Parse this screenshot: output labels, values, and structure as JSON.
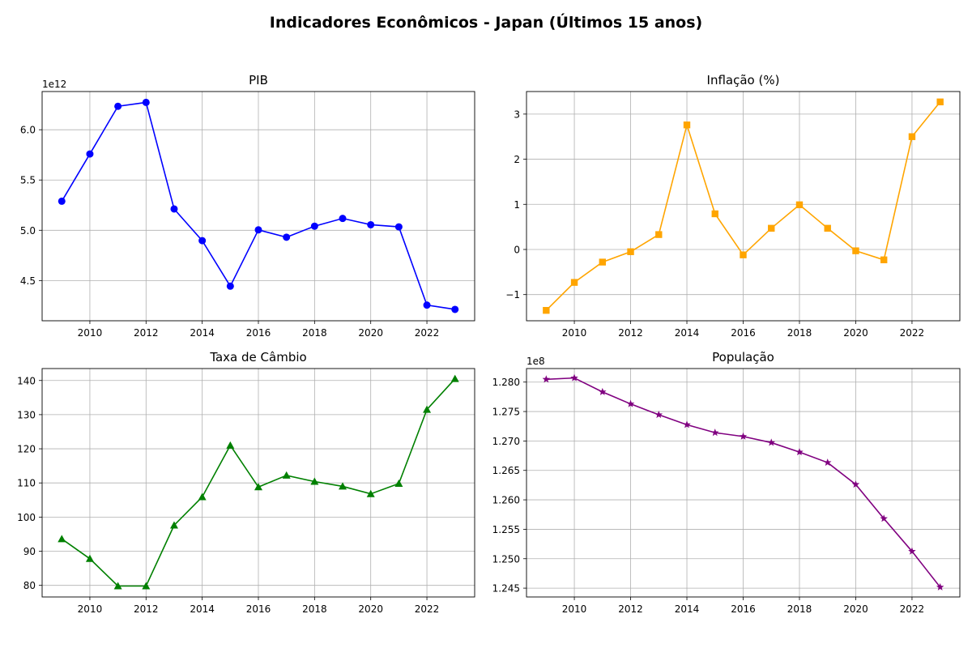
{
  "page": {
    "suptitle": "Indicadores Econômicos - Japan (Últimos 15 anos)"
  },
  "chart_data": [
    {
      "id": "pib",
      "type": "line",
      "title": "PIB",
      "offset_text": "1e12",
      "scale": 1000000000000,
      "x": [
        2009,
        2010,
        2011,
        2012,
        2013,
        2014,
        2015,
        2016,
        2017,
        2018,
        2019,
        2020,
        2021,
        2022,
        2023
      ],
      "values": [
        5289000000000,
        5759000000000,
        6233000000000,
        6272000000000,
        5212000000000,
        4897000000000,
        4444000000000,
        5004000000000,
        4931000000000,
        5041000000000,
        5118000000000,
        5055000000000,
        5034000000000,
        4256000000000,
        4213000000000
      ],
      "xticks": [
        2010,
        2012,
        2014,
        2016,
        2018,
        2020,
        2022
      ],
      "yticks": [
        4500000000000,
        5000000000000,
        5500000000000,
        6000000000000
      ],
      "ytick_labels": [
        "4.5",
        "5.0",
        "5.5",
        "6.0"
      ],
      "xlim": [
        2008.3,
        2023.7
      ],
      "ylim": [
        4100000000000,
        6380000000000
      ],
      "color": "#0000ff",
      "marker": "circle",
      "grid": true
    },
    {
      "id": "inflacao",
      "type": "line",
      "title": "Inflação (%)",
      "x": [
        2009,
        2010,
        2011,
        2012,
        2013,
        2014,
        2015,
        2016,
        2017,
        2018,
        2019,
        2020,
        2021,
        2022,
        2023
      ],
      "values": [
        -1.35,
        -0.73,
        -0.28,
        -0.05,
        0.33,
        2.76,
        0.79,
        -0.12,
        0.47,
        0.99,
        0.47,
        -0.03,
        -0.23,
        2.5,
        3.27
      ],
      "xticks": [
        2010,
        2012,
        2014,
        2016,
        2018,
        2020,
        2022
      ],
      "yticks": [
        -1,
        0,
        1,
        2,
        3
      ],
      "ytick_labels": [
        "−1",
        "0",
        "1",
        "2",
        "3"
      ],
      "xlim": [
        2008.3,
        2023.7
      ],
      "ylim": [
        -1.58,
        3.5
      ],
      "color": "#ffa500",
      "marker": "square",
      "grid": true
    },
    {
      "id": "cambio",
      "type": "line",
      "title": "Taxa de Câmbio",
      "x": [
        2009,
        2010,
        2011,
        2012,
        2013,
        2014,
        2015,
        2016,
        2017,
        2018,
        2019,
        2020,
        2021,
        2022,
        2023
      ],
      "values": [
        93.6,
        87.8,
        79.8,
        79.8,
        97.6,
        105.9,
        121.0,
        108.8,
        112.2,
        110.4,
        109.0,
        106.8,
        109.8,
        131.5,
        140.5
      ],
      "xticks": [
        2010,
        2012,
        2014,
        2016,
        2018,
        2020,
        2022
      ],
      "yticks": [
        80,
        90,
        100,
        110,
        120,
        130,
        140
      ],
      "ytick_labels": [
        "80",
        "90",
        "100",
        "110",
        "120",
        "130",
        "140"
      ],
      "xlim": [
        2008.3,
        2023.7
      ],
      "ylim": [
        76.6,
        143.5
      ],
      "color": "#008000",
      "marker": "triangle",
      "grid": true
    },
    {
      "id": "populacao",
      "type": "line",
      "title": "População",
      "offset_text": "1e8",
      "scale": 100000000,
      "x": [
        2009,
        2010,
        2011,
        2012,
        2013,
        2014,
        2015,
        2016,
        2017,
        2018,
        2019,
        2020,
        2021,
        2022,
        2023
      ],
      "values": [
        128047000,
        128070000,
        127833000,
        127629000,
        127445000,
        127276000,
        127141000,
        127076000,
        126972000,
        126811000,
        126633000,
        126261000,
        125681000,
        125125000,
        124517000
      ],
      "xticks": [
        2010,
        2012,
        2014,
        2016,
        2018,
        2020,
        2022
      ],
      "yticks": [
        124500000,
        125000000,
        125500000,
        126000000,
        126500000,
        127000000,
        127500000,
        128000000
      ],
      "ytick_labels": [
        "1.245",
        "1.250",
        "1.255",
        "1.260",
        "1.265",
        "1.270",
        "1.275",
        "1.280"
      ],
      "xlim": [
        2008.3,
        2023.7
      ],
      "ylim": [
        124350000,
        128230000
      ],
      "color": "#800080",
      "marker": "star",
      "grid": true
    }
  ]
}
